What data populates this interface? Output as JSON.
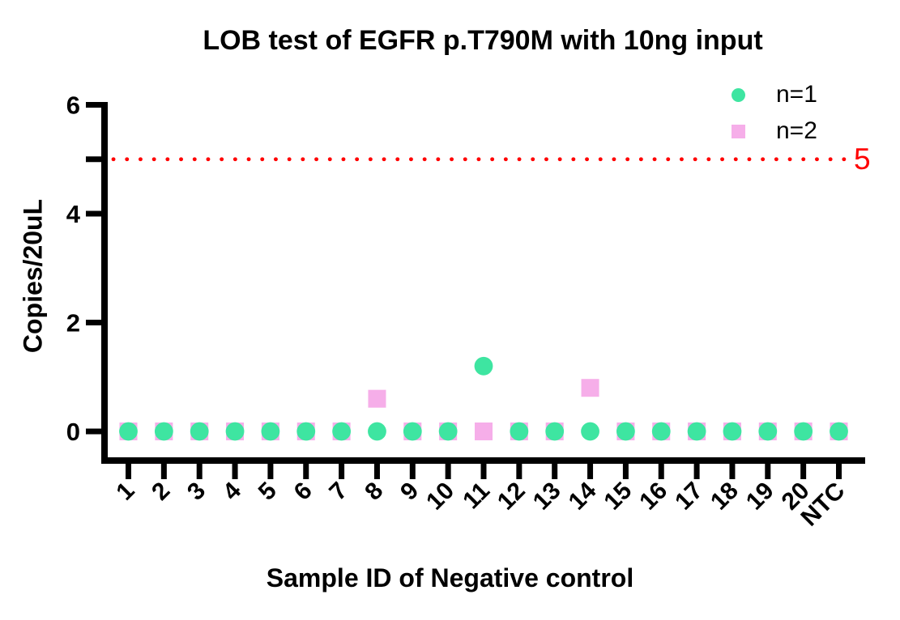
{
  "title": "LOB test of EGFR p.T790M with 10ng input",
  "legend": {
    "items": [
      {
        "label": "n=1",
        "marker": "circle",
        "color": "#3EE5A1"
      },
      {
        "label": "n=2",
        "marker": "square",
        "color": "#F6AEE9"
      }
    ]
  },
  "threshold": {
    "label": "5",
    "value": 5,
    "color": "#FF0000"
  },
  "colors": {
    "series_n1": "#3EE5A1",
    "series_n2": "#F6AEE9",
    "threshold": "#FF0000",
    "axis": "#000000"
  },
  "chart_data": {
    "type": "scatter",
    "title": "LOB test of EGFR p.T790M with 10ng input",
    "xlabel": "Sample ID of Negative control",
    "ylabel": "Copies/20uL",
    "categories": [
      "1",
      "2",
      "3",
      "4",
      "5",
      "6",
      "7",
      "8",
      "9",
      "10",
      "11",
      "12",
      "13",
      "14",
      "15",
      "16",
      "17",
      "18",
      "19",
      "20",
      "NTC"
    ],
    "ylim": [
      0,
      6
    ],
    "yticks": [
      0,
      2,
      4,
      6
    ],
    "grid": false,
    "legend_position": "top-right",
    "series": [
      {
        "name": "n=1",
        "marker": "circle",
        "color": "#3EE5A1",
        "values": [
          0,
          0,
          0,
          0,
          0,
          0,
          0,
          0,
          0,
          0,
          1.2,
          0,
          0,
          0,
          0,
          0,
          0,
          0,
          0,
          0,
          0
        ]
      },
      {
        "name": "n=2",
        "marker": "square",
        "color": "#F6AEE9",
        "values": [
          0,
          0,
          0,
          0,
          0,
          0,
          0,
          0.6,
          0,
          0,
          0,
          0,
          0,
          0.8,
          0,
          0,
          0,
          0,
          0,
          0,
          0
        ]
      }
    ],
    "threshold_line": {
      "y": 5,
      "label": "5",
      "style": "dotted",
      "color": "#FF0000"
    }
  }
}
